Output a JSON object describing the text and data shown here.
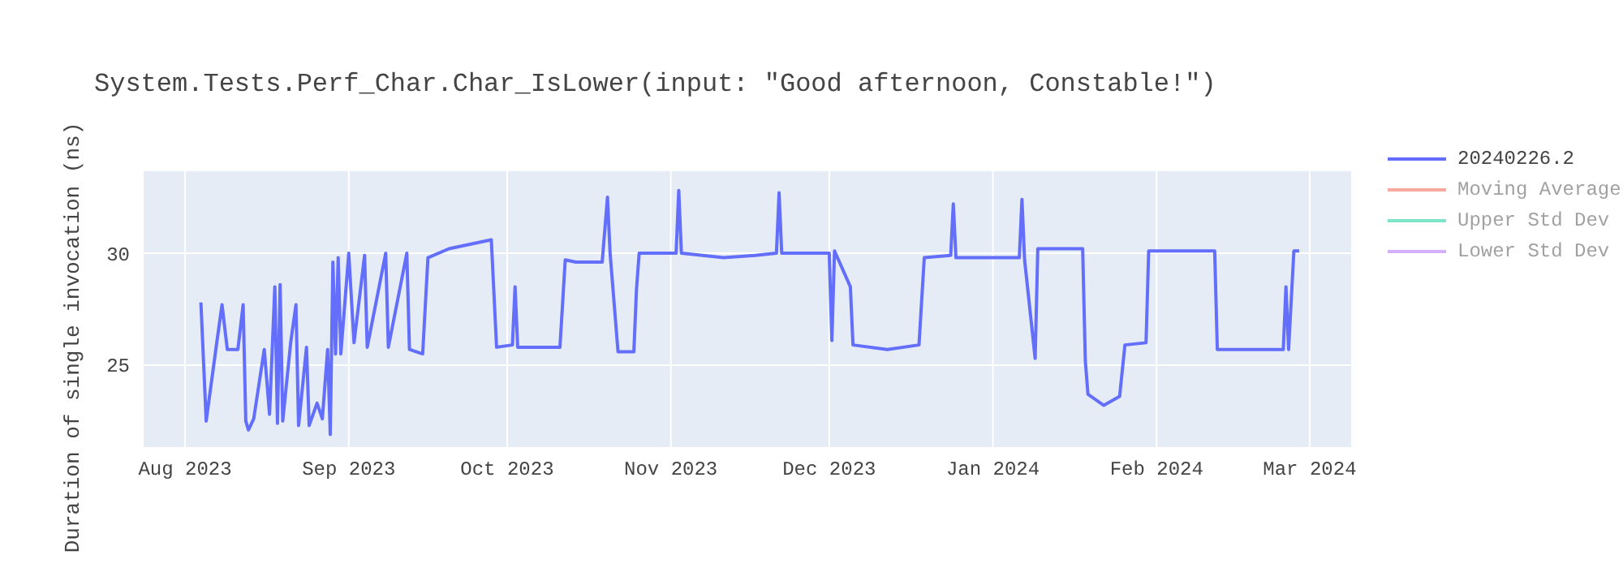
{
  "chart_data": {
    "type": "line",
    "title": "System.Tests.Perf_Char.Char_IsLower(input: \"Good afternoon, Constable!\")",
    "ylabel": "Duration of single invocation (ns)",
    "x": [
      "2023-08-04",
      "2023-08-05",
      "2023-08-07",
      "2023-08-08",
      "2023-08-09",
      "2023-08-11",
      "2023-08-12",
      "2023-08-12T12:00",
      "2023-08-13",
      "2023-08-14",
      "2023-08-16",
      "2023-08-17",
      "2023-08-18",
      "2023-08-18T12:00",
      "2023-08-19",
      "2023-08-19T12:00",
      "2023-08-21",
      "2023-08-22",
      "2023-08-22T12:00",
      "2023-08-24",
      "2023-08-24T12:00",
      "2023-08-26",
      "2023-08-27",
      "2023-08-28",
      "2023-08-28T12:00",
      "2023-08-29",
      "2023-08-29T12:00",
      "2023-08-30",
      "2023-08-30T12:00",
      "2023-09-01",
      "2023-09-02",
      "2023-09-04",
      "2023-09-04T12:00",
      "2023-09-08",
      "2023-09-08T12:00",
      "2023-09-12",
      "2023-09-12T12:00",
      "2023-09-15",
      "2023-09-16",
      "2023-09-20",
      "2023-09-24",
      "2023-09-28",
      "2023-09-29",
      "2023-10-02",
      "2023-10-02T12:00",
      "2023-10-03",
      "2023-10-11",
      "2023-10-12",
      "2023-10-14",
      "2023-10-19",
      "2023-10-20",
      "2023-10-20T12:00",
      "2023-10-22",
      "2023-10-25",
      "2023-10-25T12:00",
      "2023-10-26",
      "2023-11-02",
      "2023-11-02T12:00",
      "2023-11-03",
      "2023-11-11",
      "2023-11-17",
      "2023-11-21",
      "2023-11-21T12:00",
      "2023-11-22",
      "2023-12-01",
      "2023-12-01T12:00",
      "2023-12-02",
      "2023-12-05",
      "2023-12-05T12:00",
      "2023-12-12",
      "2023-12-18",
      "2023-12-19",
      "2023-12-24",
      "2023-12-24T12:00",
      "2023-12-25",
      "2024-01-06",
      "2024-01-06T12:00",
      "2024-01-07",
      "2024-01-09",
      "2024-01-09T12:00",
      "2024-01-18",
      "2024-01-18T12:00",
      "2024-01-19",
      "2024-01-22",
      "2024-01-25",
      "2024-01-26",
      "2024-01-30",
      "2024-01-30T12:00",
      "2024-02-12",
      "2024-02-12T12:00",
      "2024-02-20",
      "2024-02-25",
      "2024-02-25T12:00",
      "2024-02-26",
      "2024-02-27",
      "2024-02-28"
    ],
    "series": [
      {
        "name": "20240226.2",
        "color": "#636efa",
        "values": [
          27.8,
          22.5,
          26.0,
          27.7,
          25.7,
          25.7,
          27.7,
          22.5,
          22.1,
          22.6,
          25.7,
          22.8,
          28.5,
          22.4,
          28.6,
          22.5,
          26.0,
          27.7,
          22.3,
          25.8,
          22.3,
          23.3,
          22.6,
          25.7,
          21.9,
          29.6,
          25.5,
          29.8,
          25.5,
          30.0,
          26.0,
          29.9,
          25.8,
          30.0,
          25.8,
          30.0,
          25.7,
          25.5,
          29.8,
          30.2,
          30.4,
          30.6,
          25.8,
          25.9,
          28.5,
          25.8,
          25.8,
          29.7,
          29.6,
          29.6,
          32.5,
          30.0,
          25.6,
          25.6,
          28.4,
          30.0,
          30.0,
          32.8,
          30.0,
          29.8,
          29.9,
          30.0,
          32.7,
          30.0,
          30.0,
          26.1,
          30.1,
          28.5,
          25.9,
          25.7,
          25.9,
          29.8,
          29.9,
          32.2,
          29.8,
          29.8,
          32.4,
          29.7,
          25.3,
          30.2,
          30.2,
          25.2,
          23.7,
          23.2,
          23.6,
          25.9,
          26.0,
          30.1,
          30.1,
          25.7,
          25.7,
          25.7,
          28.5,
          25.7,
          30.1,
          30.1
        ]
      },
      {
        "name": "Moving Average",
        "color": "#ef553b",
        "values": [
          null,
          null,
          null,
          null,
          null,
          null,
          null,
          null,
          null,
          null,
          null,
          null,
          null,
          null,
          null,
          null,
          null,
          null,
          null,
          null,
          null,
          null,
          null,
          null,
          null,
          null,
          null,
          null,
          null,
          null,
          null,
          null,
          null,
          null,
          null,
          null,
          null,
          null,
          null,
          null,
          null,
          null,
          null,
          null,
          null,
          null,
          null,
          null,
          null,
          null,
          null,
          null,
          null,
          null,
          null,
          null,
          null,
          null,
          null,
          null,
          null,
          null,
          null,
          null,
          null,
          null,
          null,
          null,
          null,
          null,
          null,
          null,
          null,
          null,
          null,
          null,
          null,
          null,
          null,
          null,
          null,
          null,
          null,
          null,
          null,
          null,
          null,
          null,
          null,
          null,
          null,
          null,
          null,
          null,
          null,
          null
        ]
      },
      {
        "name": "Upper Std Dev",
        "color": "#00cc96",
        "values": [
          null,
          null,
          null,
          null,
          null,
          null,
          null,
          null,
          null,
          null,
          null,
          null,
          null,
          null,
          null,
          null,
          null,
          null,
          null,
          null,
          null,
          null,
          null,
          null,
          null,
          null,
          null,
          null,
          null,
          null,
          null,
          null,
          null,
          null,
          null,
          null,
          null,
          null,
          null,
          null,
          null,
          null,
          null,
          null,
          null,
          null,
          null,
          null,
          null,
          null,
          null,
          null,
          null,
          null,
          null,
          null,
          null,
          null,
          null,
          null,
          null,
          null,
          null,
          null,
          null,
          null,
          null,
          null,
          null,
          null,
          null,
          null,
          null,
          null,
          null,
          null,
          null,
          null,
          null,
          null,
          null,
          null,
          null,
          null,
          null,
          null,
          null,
          null,
          null,
          null,
          null,
          null,
          null,
          null,
          null,
          null
        ]
      },
      {
        "name": "Lower Std Dev",
        "color": "#ab63fa",
        "values": [
          null,
          null,
          null,
          null,
          null,
          null,
          null,
          null,
          null,
          null,
          null,
          null,
          null,
          null,
          null,
          null,
          null,
          null,
          null,
          null,
          null,
          null,
          null,
          null,
          null,
          null,
          null,
          null,
          null,
          null,
          null,
          null,
          null,
          null,
          null,
          null,
          null,
          null,
          null,
          null,
          null,
          null,
          null,
          null,
          null,
          null,
          null,
          null,
          null,
          null,
          null,
          null,
          null,
          null,
          null,
          null,
          null,
          null,
          null,
          null,
          null,
          null,
          null,
          null,
          null,
          null,
          null,
          null,
          null,
          null,
          null,
          null,
          null,
          null,
          null,
          null,
          null,
          null,
          null,
          null,
          null,
          null,
          null,
          null,
          null,
          null,
          null,
          null,
          null,
          null,
          null,
          null,
          null,
          null,
          null,
          null
        ]
      }
    ],
    "xlim": [
      "2023-07-24",
      "2024-03-09"
    ],
    "xticks": [
      {
        "value": "2023-08-01",
        "label": "Aug 2023"
      },
      {
        "value": "2023-09-01",
        "label": "Sep 2023"
      },
      {
        "value": "2023-10-01",
        "label": "Oct 2023"
      },
      {
        "value": "2023-11-01",
        "label": "Nov 2023"
      },
      {
        "value": "2023-12-01",
        "label": "Dec 2023"
      },
      {
        "value": "2024-01-01",
        "label": "Jan 2024"
      },
      {
        "value": "2024-02-01",
        "label": "Feb 2024"
      },
      {
        "value": "2024-03-01",
        "label": "Mar 2024"
      }
    ],
    "ylim": [
      21.3,
      33.7
    ],
    "yticks": [
      25,
      30
    ],
    "grid": true,
    "legend": "right",
    "marker": "none",
    "line_style": "solid"
  }
}
